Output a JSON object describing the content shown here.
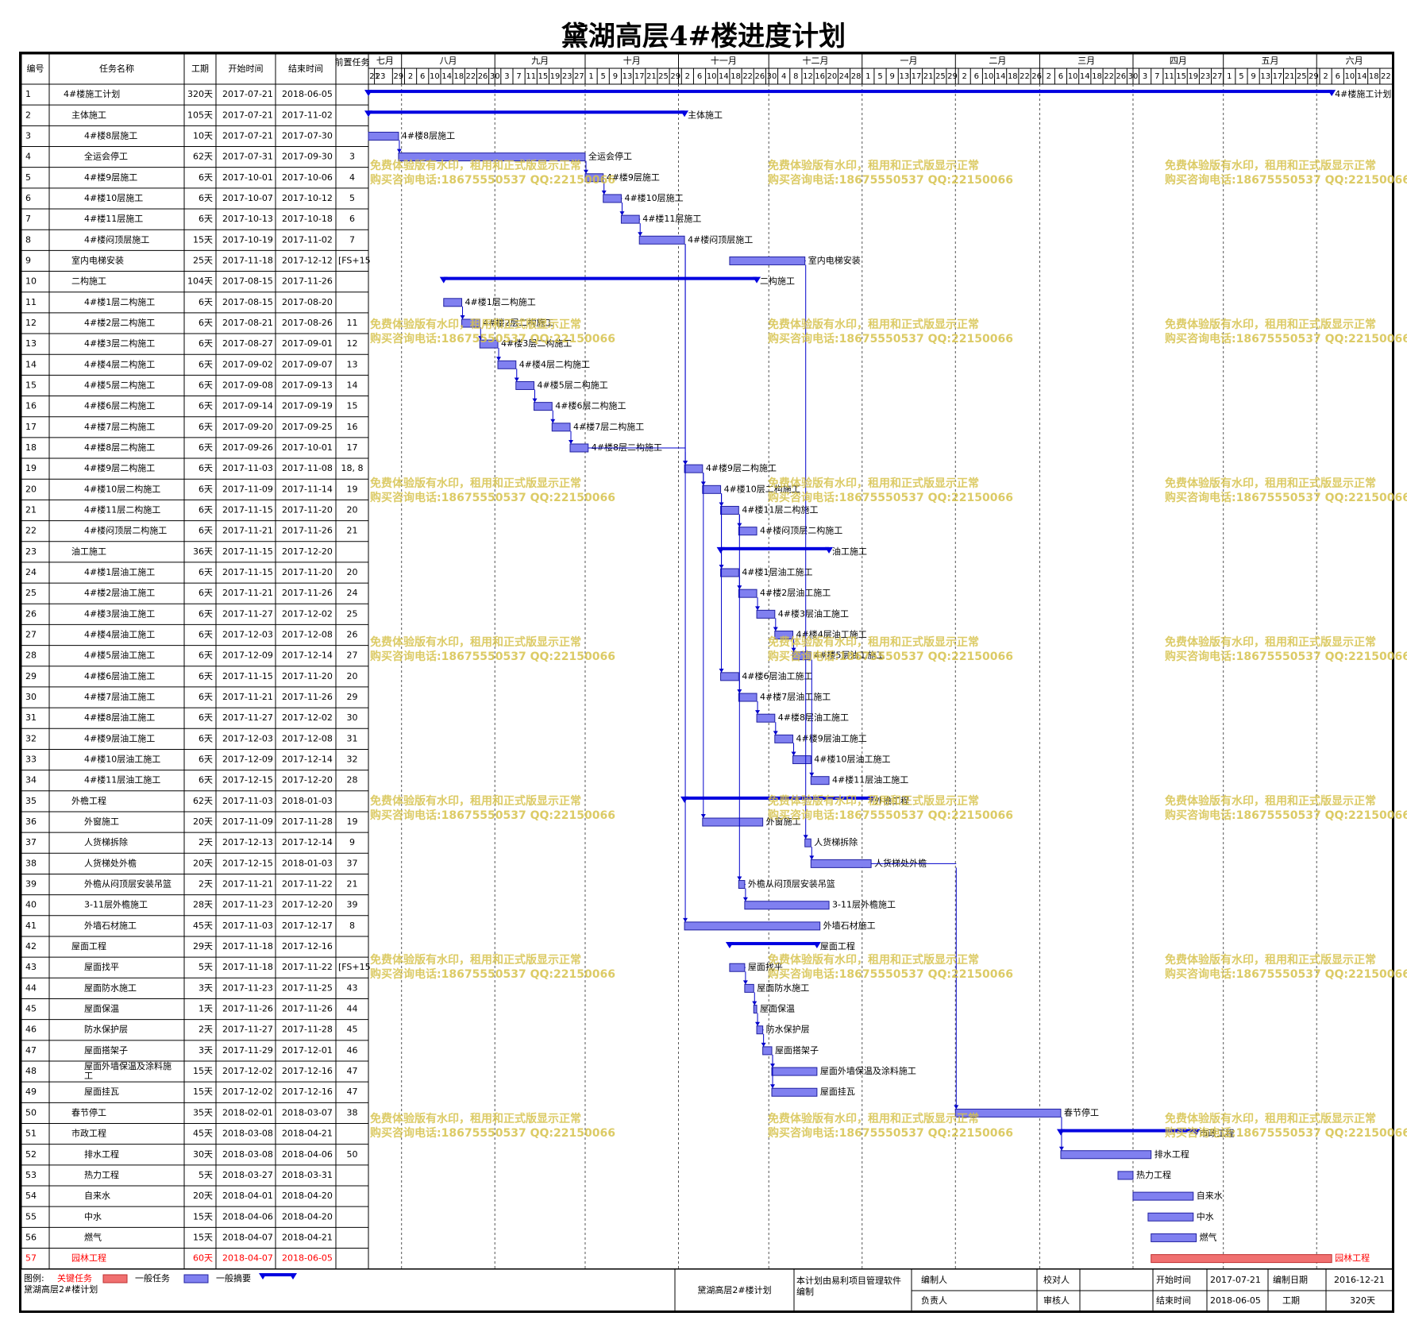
{
  "title": "黛湖高层4#楼进度计划",
  "columns": [
    "编号",
    "任务名称",
    "工期",
    "开始时间",
    "结束时间",
    "前置任务"
  ],
  "timeline": {
    "start": "2017-07-21",
    "end": "2018-06-26",
    "months": [
      {
        "label": "七月",
        "start": "2017-07-21"
      },
      {
        "label": "八月",
        "start": "2017-08-01"
      },
      {
        "label": "九月",
        "start": "2017-09-01"
      },
      {
        "label": "十月",
        "start": "2017-10-01"
      },
      {
        "label": "十一月",
        "start": "2017-11-01"
      },
      {
        "label": "十二月",
        "start": "2017-12-01"
      },
      {
        "label": "一月",
        "start": "2018-01-01"
      },
      {
        "label": "二月",
        "start": "2018-02-01"
      },
      {
        "label": "三月",
        "start": "2018-03-01"
      },
      {
        "label": "四月",
        "start": "2018-04-01"
      },
      {
        "label": "五月",
        "start": "2018-05-01"
      },
      {
        "label": "六月",
        "start": "2018-06-01"
      }
    ],
    "day_ticks": [
      [
        "21",
        "23",
        "29"
      ],
      [
        "2",
        "6",
        "10",
        "14",
        "18",
        "22",
        "26",
        "30"
      ],
      [
        "3",
        "7",
        "11",
        "15",
        "19",
        "23",
        "27"
      ],
      [
        "1",
        "5",
        "9",
        "13",
        "17",
        "21",
        "25",
        "29"
      ],
      [
        "2",
        "6",
        "10",
        "14",
        "18",
        "22",
        "26",
        "30"
      ],
      [
        "4",
        "8",
        "12",
        "16",
        "20",
        "24",
        "28"
      ],
      [
        "1",
        "5",
        "9",
        "13",
        "17",
        "21",
        "25",
        "29"
      ],
      [
        "2",
        "6",
        "10",
        "14",
        "18",
        "22",
        "26"
      ],
      [
        "2",
        "6",
        "10",
        "14",
        "18",
        "22",
        "26",
        "30"
      ],
      [
        "3",
        "7",
        "11",
        "15",
        "19",
        "23",
        "27"
      ],
      [
        "1",
        "5",
        "9",
        "13",
        "17",
        "21",
        "25",
        "29"
      ],
      [
        "2",
        "6",
        "10",
        "14",
        "18",
        "22"
      ]
    ]
  },
  "tasks": [
    {
      "id": "1",
      "name": "4#楼施工计划",
      "dur": "320天",
      "start": "2017-07-21",
      "end": "2018-06-05",
      "pred": "",
      "type": "summary",
      "indent": 0
    },
    {
      "id": "2",
      "name": "主体施工",
      "dur": "105天",
      "start": "2017-07-21",
      "end": "2017-11-02",
      "pred": "",
      "type": "summary",
      "indent": 1
    },
    {
      "id": "3",
      "name": "4#楼8层施工",
      "dur": "10天",
      "start": "2017-07-21",
      "end": "2017-07-30",
      "pred": "",
      "type": "normal",
      "indent": 2
    },
    {
      "id": "4",
      "name": "全运会停工",
      "dur": "62天",
      "start": "2017-07-31",
      "end": "2017-09-30",
      "pred": "3",
      "type": "normal",
      "indent": 2
    },
    {
      "id": "5",
      "name": "4#楼9层施工",
      "dur": "6天",
      "start": "2017-10-01",
      "end": "2017-10-06",
      "pred": "4",
      "type": "normal",
      "indent": 2
    },
    {
      "id": "6",
      "name": "4#楼10层施工",
      "dur": "6天",
      "start": "2017-10-07",
      "end": "2017-10-12",
      "pred": "5",
      "type": "normal",
      "indent": 2
    },
    {
      "id": "7",
      "name": "4#楼11层施工",
      "dur": "6天",
      "start": "2017-10-13",
      "end": "2017-10-18",
      "pred": "6",
      "type": "normal",
      "indent": 2
    },
    {
      "id": "8",
      "name": "4#楼闷顶层施工",
      "dur": "15天",
      "start": "2017-10-19",
      "end": "2017-11-02",
      "pred": "7",
      "type": "normal",
      "indent": 2
    },
    {
      "id": "9",
      "name": "室内电梯安装",
      "dur": "25天",
      "start": "2017-11-18",
      "end": "2017-12-12",
      "pred": "[FS+15",
      "type": "normal",
      "indent": 1
    },
    {
      "id": "10",
      "name": "二构施工",
      "dur": "104天",
      "start": "2017-08-15",
      "end": "2017-11-26",
      "pred": "",
      "type": "summary",
      "indent": 1
    },
    {
      "id": "11",
      "name": "4#楼1层二构施工",
      "dur": "6天",
      "start": "2017-08-15",
      "end": "2017-08-20",
      "pred": "",
      "type": "normal",
      "indent": 2
    },
    {
      "id": "12",
      "name": "4#楼2层二构施工",
      "dur": "6天",
      "start": "2017-08-21",
      "end": "2017-08-26",
      "pred": "11",
      "type": "normal",
      "indent": 2
    },
    {
      "id": "13",
      "name": "4#楼3层二构施工",
      "dur": "6天",
      "start": "2017-08-27",
      "end": "2017-09-01",
      "pred": "12",
      "type": "normal",
      "indent": 2
    },
    {
      "id": "14",
      "name": "4#楼4层二构施工",
      "dur": "6天",
      "start": "2017-09-02",
      "end": "2017-09-07",
      "pred": "13",
      "type": "normal",
      "indent": 2
    },
    {
      "id": "15",
      "name": "4#楼5层二构施工",
      "dur": "6天",
      "start": "2017-09-08",
      "end": "2017-09-13",
      "pred": "14",
      "type": "normal",
      "indent": 2
    },
    {
      "id": "16",
      "name": "4#楼6层二构施工",
      "dur": "6天",
      "start": "2017-09-14",
      "end": "2017-09-19",
      "pred": "15",
      "type": "normal",
      "indent": 2
    },
    {
      "id": "17",
      "name": "4#楼7层二构施工",
      "dur": "6天",
      "start": "2017-09-20",
      "end": "2017-09-25",
      "pred": "16",
      "type": "normal",
      "indent": 2
    },
    {
      "id": "18",
      "name": "4#楼8层二构施工",
      "dur": "6天",
      "start": "2017-09-26",
      "end": "2017-10-01",
      "pred": "17",
      "type": "normal",
      "indent": 2
    },
    {
      "id": "19",
      "name": "4#楼9层二构施工",
      "dur": "6天",
      "start": "2017-11-03",
      "end": "2017-11-08",
      "pred": "18, 8",
      "type": "normal",
      "indent": 2
    },
    {
      "id": "20",
      "name": "4#楼10层二构施工",
      "dur": "6天",
      "start": "2017-11-09",
      "end": "2017-11-14",
      "pred": "19",
      "type": "normal",
      "indent": 2
    },
    {
      "id": "21",
      "name": "4#楼11层二构施工",
      "dur": "6天",
      "start": "2017-11-15",
      "end": "2017-11-20",
      "pred": "20",
      "type": "normal",
      "indent": 2
    },
    {
      "id": "22",
      "name": "4#楼闷顶层二构施工",
      "dur": "6天",
      "start": "2017-11-21",
      "end": "2017-11-26",
      "pred": "21",
      "type": "normal",
      "indent": 2
    },
    {
      "id": "23",
      "name": "油工施工",
      "dur": "36天",
      "start": "2017-11-15",
      "end": "2017-12-20",
      "pred": "",
      "type": "summary",
      "indent": 1
    },
    {
      "id": "24",
      "name": "4#楼1层油工施工",
      "dur": "6天",
      "start": "2017-11-15",
      "end": "2017-11-20",
      "pred": "20",
      "type": "normal",
      "indent": 2
    },
    {
      "id": "25",
      "name": "4#楼2层油工施工",
      "dur": "6天",
      "start": "2017-11-21",
      "end": "2017-11-26",
      "pred": "24",
      "type": "normal",
      "indent": 2
    },
    {
      "id": "26",
      "name": "4#楼3层油工施工",
      "dur": "6天",
      "start": "2017-11-27",
      "end": "2017-12-02",
      "pred": "25",
      "type": "normal",
      "indent": 2
    },
    {
      "id": "27",
      "name": "4#楼4层油工施工",
      "dur": "6天",
      "start": "2017-12-03",
      "end": "2017-12-08",
      "pred": "26",
      "type": "normal",
      "indent": 2
    },
    {
      "id": "28",
      "name": "4#楼5层油工施工",
      "dur": "6天",
      "start": "2017-12-09",
      "end": "2017-12-14",
      "pred": "27",
      "type": "normal",
      "indent": 2
    },
    {
      "id": "29",
      "name": "4#楼6层油工施工",
      "dur": "6天",
      "start": "2017-11-15",
      "end": "2017-11-20",
      "pred": "20",
      "type": "normal",
      "indent": 2
    },
    {
      "id": "30",
      "name": "4#楼7层油工施工",
      "dur": "6天",
      "start": "2017-11-21",
      "end": "2017-11-26",
      "pred": "29",
      "type": "normal",
      "indent": 2
    },
    {
      "id": "31",
      "name": "4#楼8层油工施工",
      "dur": "6天",
      "start": "2017-11-27",
      "end": "2017-12-02",
      "pred": "30",
      "type": "normal",
      "indent": 2
    },
    {
      "id": "32",
      "name": "4#楼9层油工施工",
      "dur": "6天",
      "start": "2017-12-03",
      "end": "2017-12-08",
      "pred": "31",
      "type": "normal",
      "indent": 2
    },
    {
      "id": "33",
      "name": "4#楼10层油工施工",
      "dur": "6天",
      "start": "2017-12-09",
      "end": "2017-12-14",
      "pred": "32",
      "type": "normal",
      "indent": 2
    },
    {
      "id": "34",
      "name": "4#楼11层油工施工",
      "dur": "6天",
      "start": "2017-12-15",
      "end": "2017-12-20",
      "pred": "28",
      "type": "normal",
      "indent": 2
    },
    {
      "id": "35",
      "name": "外檐工程",
      "dur": "62天",
      "start": "2017-11-03",
      "end": "2018-01-03",
      "pred": "",
      "type": "summary",
      "indent": 1
    },
    {
      "id": "36",
      "name": "外窗施工",
      "dur": "20天",
      "start": "2017-11-09",
      "end": "2017-11-28",
      "pred": "19",
      "type": "normal",
      "indent": 2
    },
    {
      "id": "37",
      "name": "人货梯拆除",
      "dur": "2天",
      "start": "2017-12-13",
      "end": "2017-12-14",
      "pred": "9",
      "type": "normal",
      "indent": 2
    },
    {
      "id": "38",
      "name": "人货梯处外檐",
      "dur": "20天",
      "start": "2017-12-15",
      "end": "2018-01-03",
      "pred": "37",
      "type": "normal",
      "indent": 2
    },
    {
      "id": "39",
      "name": "外檐从闷顶层安装吊篮",
      "dur": "2天",
      "start": "2017-11-21",
      "end": "2017-11-22",
      "pred": "21",
      "type": "normal",
      "indent": 2
    },
    {
      "id": "40",
      "name": "3-11层外檐施工",
      "dur": "28天",
      "start": "2017-11-23",
      "end": "2017-12-20",
      "pred": "39",
      "type": "normal",
      "indent": 2
    },
    {
      "id": "41",
      "name": "外墙石材施工",
      "dur": "45天",
      "start": "2017-11-03",
      "end": "2017-12-17",
      "pred": "8",
      "type": "normal",
      "indent": 2
    },
    {
      "id": "42",
      "name": "屋面工程",
      "dur": "29天",
      "start": "2017-11-18",
      "end": "2017-12-16",
      "pred": "",
      "type": "summary",
      "indent": 1
    },
    {
      "id": "43",
      "name": "屋面找平",
      "dur": "5天",
      "start": "2017-11-18",
      "end": "2017-11-22",
      "pred": "[FS+15",
      "type": "normal",
      "indent": 2
    },
    {
      "id": "44",
      "name": "屋面防水施工",
      "dur": "3天",
      "start": "2017-11-23",
      "end": "2017-11-25",
      "pred": "43",
      "type": "normal",
      "indent": 2
    },
    {
      "id": "45",
      "name": "屋面保温",
      "dur": "1天",
      "start": "2017-11-26",
      "end": "2017-11-26",
      "pred": "44",
      "type": "normal",
      "indent": 2
    },
    {
      "id": "46",
      "name": "防水保护层",
      "dur": "2天",
      "start": "2017-11-27",
      "end": "2017-11-28",
      "pred": "45",
      "type": "normal",
      "indent": 2
    },
    {
      "id": "47",
      "name": "屋面搭架子",
      "dur": "3天",
      "start": "2017-11-29",
      "end": "2017-12-01",
      "pred": "46",
      "type": "normal",
      "indent": 2
    },
    {
      "id": "48",
      "name": "屋面外墙保温及涂料施工",
      "dur": "15天",
      "start": "2017-12-02",
      "end": "2017-12-16",
      "pred": "47",
      "type": "normal",
      "indent": 2
    },
    {
      "id": "49",
      "name": "屋面挂瓦",
      "dur": "15天",
      "start": "2017-12-02",
      "end": "2017-12-16",
      "pred": "47",
      "type": "normal",
      "indent": 2
    },
    {
      "id": "50",
      "name": "春节停工",
      "dur": "35天",
      "start": "2018-02-01",
      "end": "2018-03-07",
      "pred": "38",
      "type": "normal",
      "indent": 1
    },
    {
      "id": "51",
      "name": "市政工程",
      "dur": "45天",
      "start": "2018-03-08",
      "end": "2018-04-21",
      "pred": "",
      "type": "summary",
      "indent": 1
    },
    {
      "id": "52",
      "name": "排水工程",
      "dur": "30天",
      "start": "2018-03-08",
      "end": "2018-04-06",
      "pred": "50",
      "type": "normal",
      "indent": 2
    },
    {
      "id": "53",
      "name": "热力工程",
      "dur": "5天",
      "start": "2018-03-27",
      "end": "2018-03-31",
      "pred": "",
      "type": "normal",
      "indent": 2
    },
    {
      "id": "54",
      "name": "自来水",
      "dur": "20天",
      "start": "2018-04-01",
      "end": "2018-04-20",
      "pred": "",
      "type": "normal",
      "indent": 2
    },
    {
      "id": "55",
      "name": "中水",
      "dur": "15天",
      "start": "2018-04-06",
      "end": "2018-04-20",
      "pred": "",
      "type": "normal",
      "indent": 2
    },
    {
      "id": "56",
      "name": "燃气",
      "dur": "15天",
      "start": "2018-04-07",
      "end": "2018-04-21",
      "pred": "",
      "type": "normal",
      "indent": 2
    },
    {
      "id": "57",
      "name": "园林工程",
      "dur": "60天",
      "start": "2018-04-07",
      "end": "2018-06-05",
      "pred": "",
      "type": "critical",
      "indent": 1
    }
  ],
  "chart_data": {
    "type": "gantt",
    "title": "黛湖高层4#楼进度计划",
    "x_axis": {
      "type": "date",
      "range": [
        "2017-07-21",
        "2018-06-26"
      ]
    },
    "row_count": 57
  },
  "legend": {
    "label": "图例:",
    "critical": "关键任务",
    "normal": "一般任务",
    "summary": "一般摘要",
    "project": "黛湖高层2#楼计划"
  },
  "footer": {
    "plan_name": "黛湖高层2#楼计划",
    "software_note": "本计划由易利项目管理软件编制",
    "editor_label": "编制人",
    "responsible_label": "负责人",
    "proofreader_label": "校对人",
    "reviewer_label": "审核人",
    "start_label": "开始时间",
    "start_value": "2017-07-21",
    "end_label": "结束时间",
    "end_value": "2018-06-05",
    "date_label": "编制日期",
    "date_value": "2016-12-21",
    "duration_label": "工期",
    "duration_value": "320天"
  },
  "watermark": {
    "line1": "免费体验版有水印，租用和正式版显示正常",
    "line2": "购买咨询电话:18675550537 QQ:22150066"
  },
  "colors": {
    "normal_fill": "#8080f0",
    "summary": "#0000e0",
    "critical_fill": "#f07070",
    "critical_text": "#ff0000",
    "link": "#0000cc",
    "watermark": "#d6c24c"
  }
}
